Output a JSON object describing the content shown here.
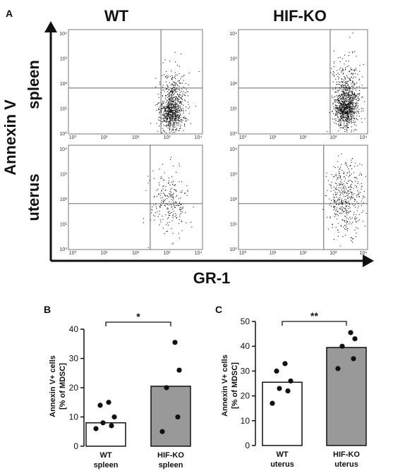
{
  "panel_a": {
    "letter": "A",
    "col_labels": [
      "WT",
      "HIF-KO"
    ],
    "row_labels": [
      "spleen",
      "uterus"
    ],
    "y_axis_label": "Annexin V",
    "x_axis_label": "GR-1",
    "decade_labels": [
      "10⁰",
      "10¹",
      "10²",
      "10³",
      "10⁴"
    ]
  },
  "chart_data": [
    {
      "type": "bar",
      "panel": "B",
      "ylabel_line1": "Annexin V+ cells",
      "ylabel_line2": "[% of MDSC]",
      "ylim": [
        0,
        40
      ],
      "yticks": [
        "0",
        "10",
        "20",
        "30",
        "40"
      ],
      "categories": [
        [
          "WT",
          "spleen"
        ],
        [
          "HIF-KO",
          "spleen"
        ]
      ],
      "bar_values": [
        8,
        20.5
      ],
      "bar_colors": [
        "#ffffff",
        "#999999"
      ],
      "points": [
        [
          6,
          7,
          8,
          10,
          14,
          15
        ],
        [
          5,
          10,
          20,
          26,
          35.5
        ]
      ],
      "significance": "*"
    },
    {
      "type": "bar",
      "panel": "C",
      "ylabel_line1": "Annexin V+ cells",
      "ylabel_line2": "[% of MDSC]",
      "ylim": [
        0,
        50
      ],
      "yticks": [
        "0",
        "10",
        "20",
        "30",
        "40",
        "50"
      ],
      "categories": [
        [
          "WT",
          "uterus"
        ],
        [
          "HIF-KO",
          "uterus"
        ]
      ],
      "bar_values": [
        25.5,
        39.5
      ],
      "bar_colors": [
        "#ffffff",
        "#999999"
      ],
      "points": [
        [
          17,
          22,
          23,
          26,
          30,
          33
        ],
        [
          31,
          35,
          40,
          43,
          45.5
        ]
      ],
      "significance": "**"
    }
  ]
}
